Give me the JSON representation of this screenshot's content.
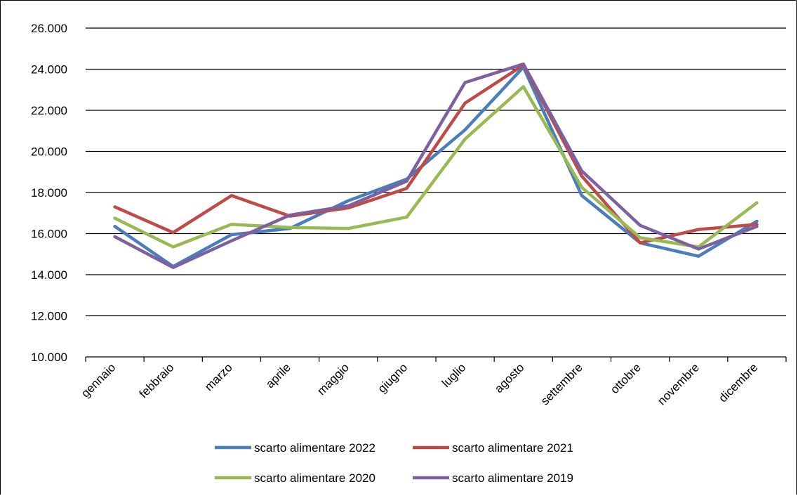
{
  "chart_data": {
    "type": "line",
    "title": "",
    "xlabel": "",
    "ylabel": "",
    "categories": [
      "gennaio",
      "febbraio",
      "marzo",
      "aprile",
      "maggio",
      "giugno",
      "luglio",
      "agosto",
      "settembre",
      "ottobre",
      "novembre",
      "dicembre"
    ],
    "ylim": [
      10000,
      26000
    ],
    "yticks": [
      10000,
      12000,
      14000,
      16000,
      18000,
      20000,
      22000,
      24000,
      26000
    ],
    "ytick_labels": [
      "10.000",
      "12.000",
      "14.000",
      "16.000",
      "18.000",
      "20.000",
      "22.000",
      "24.000",
      "26.000"
    ],
    "grid": "horizontal",
    "legend_position": "bottom",
    "series": [
      {
        "name": "scarto alimentare 2022",
        "color": "#4a7ebb",
        "values": [
          16350,
          14400,
          15950,
          16250,
          17600,
          18650,
          21050,
          24100,
          17850,
          15550,
          14900,
          16600
        ]
      },
      {
        "name": "scarto alimentare 2021",
        "color": "#be4b48",
        "values": [
          17300,
          16050,
          17850,
          16850,
          17250,
          18200,
          22350,
          24200,
          18800,
          15550,
          16200,
          16450
        ]
      },
      {
        "name": "scarto alimentare 2020",
        "color": "#98b954",
        "values": [
          16750,
          15350,
          16450,
          16300,
          16250,
          16800,
          20600,
          23150,
          18250,
          15800,
          15350,
          17500
        ]
      },
      {
        "name": "scarto alimentare 2019",
        "color": "#7d60a0",
        "values": [
          15850,
          14350,
          15650,
          16900,
          17350,
          18550,
          23350,
          24250,
          19050,
          16400,
          15250,
          16350
        ]
      }
    ]
  }
}
